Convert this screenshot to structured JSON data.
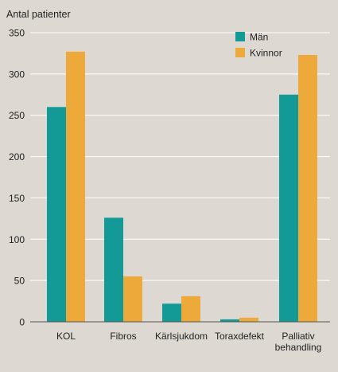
{
  "chart_data": {
    "type": "bar",
    "title": "",
    "ylabel": "Antal patienter",
    "xlabel": "",
    "ylim": [
      0,
      350
    ],
    "yticks": [
      0,
      50,
      100,
      150,
      200,
      250,
      300,
      350
    ],
    "grid": true,
    "legend_position": "top-right",
    "categories": [
      [
        "KOL"
      ],
      [
        "Fibros"
      ],
      [
        "Kärlsjukdom"
      ],
      [
        "Toraxdefekt"
      ],
      [
        "Palliativ",
        "behandling"
      ]
    ],
    "series": [
      {
        "name": "Män",
        "color": "#139a96",
        "values": [
          260,
          126,
          22,
          3,
          275
        ]
      },
      {
        "name": "Kvinnor",
        "color": "#eda93a",
        "values": [
          327,
          55,
          31,
          5,
          323
        ]
      }
    ]
  }
}
